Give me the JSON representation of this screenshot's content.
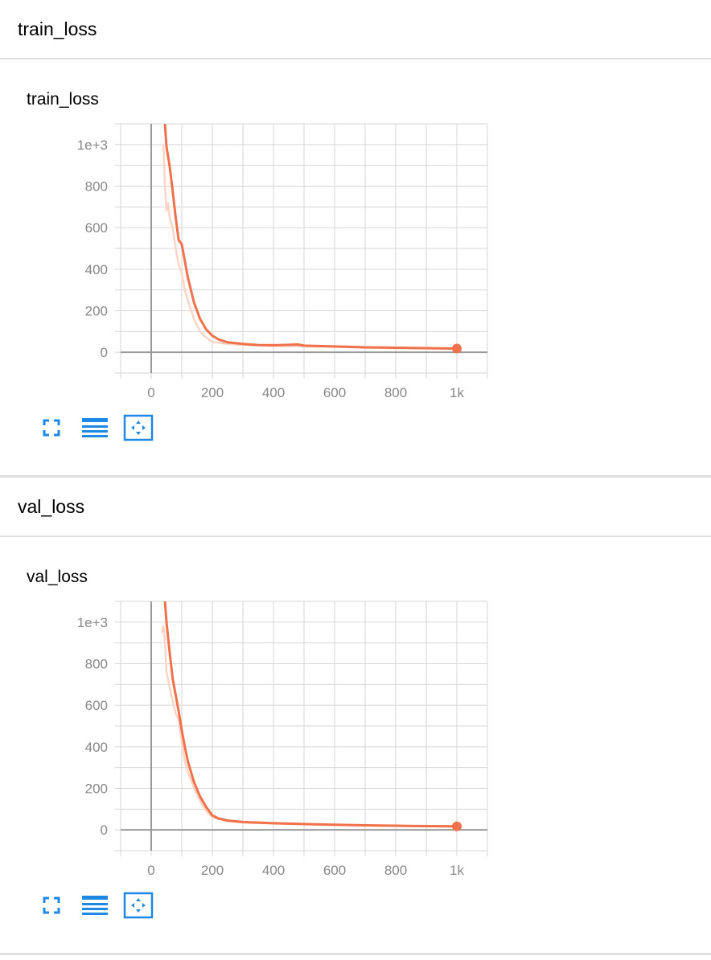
{
  "sections": [
    {
      "header": "train_loss",
      "card_title": "train_loss"
    },
    {
      "header": "val_loss",
      "card_title": "val_loss"
    }
  ],
  "toolbar": {
    "icons": [
      "fullscreen-icon",
      "data-table-icon",
      "fit-domain-icon"
    ]
  },
  "colors": {
    "smoothed": "#f0714a",
    "raw": "#fcd5c7",
    "grid": "#d6d6d6",
    "axis": "#999999"
  },
  "chart_data": [
    {
      "type": "line",
      "title": "train_loss",
      "xlabel": "",
      "ylabel": "",
      "xlim": [
        -100,
        1100
      ],
      "ylim": [
        -100,
        1100
      ],
      "x_ticks": [
        0,
        200,
        400,
        600,
        800,
        1000
      ],
      "x_tick_labels": [
        "0",
        "200",
        "400",
        "600",
        "800",
        "1k"
      ],
      "y_ticks": [
        0,
        200,
        400,
        600,
        800,
        1000
      ],
      "y_tick_labels": [
        "0",
        "200",
        "400",
        "600",
        "800",
        "1e+3"
      ],
      "grid": true,
      "series": [
        {
          "role": "smoothed",
          "x": [
            45,
            50,
            60,
            70,
            80,
            90,
            100,
            110,
            120,
            140,
            160,
            180,
            200,
            220,
            250,
            300,
            350,
            400,
            450,
            480,
            500,
            550,
            600,
            650,
            700,
            750,
            800,
            850,
            900,
            950,
            1000
          ],
          "y": [
            1100,
            990,
            900,
            780,
            650,
            540,
            520,
            440,
            360,
            240,
            160,
            110,
            80,
            62,
            48,
            40,
            35,
            34,
            36,
            38,
            32,
            30,
            28,
            26,
            24,
            23,
            22,
            21,
            20,
            19,
            18
          ]
        },
        {
          "role": "raw",
          "x": [
            40,
            45,
            50,
            55,
            60,
            70,
            80,
            90,
            100,
            110,
            120,
            140,
            160,
            180,
            200,
            250,
            300,
            400,
            500,
            600,
            700,
            800,
            900,
            1000
          ],
          "y": [
            1000,
            800,
            680,
            720,
            650,
            600,
            500,
            420,
            380,
            300,
            250,
            160,
            100,
            70,
            50,
            40,
            35,
            30,
            28,
            26,
            22,
            20,
            18,
            16
          ]
        }
      ]
    },
    {
      "type": "line",
      "title": "val_loss",
      "xlabel": "",
      "ylabel": "",
      "xlim": [
        -100,
        1100
      ],
      "ylim": [
        -100,
        1100
      ],
      "x_ticks": [
        0,
        200,
        400,
        600,
        800,
        1000
      ],
      "x_tick_labels": [
        "0",
        "200",
        "400",
        "600",
        "800",
        "1k"
      ],
      "y_ticks": [
        0,
        200,
        400,
        600,
        800,
        1000
      ],
      "y_tick_labels": [
        "0",
        "200",
        "400",
        "600",
        "800",
        "1e+3"
      ],
      "grid": true,
      "series": [
        {
          "role": "smoothed",
          "x": [
            45,
            50,
            60,
            70,
            80,
            90,
            100,
            110,
            120,
            140,
            160,
            180,
            200,
            220,
            250,
            300,
            350,
            400,
            500,
            600,
            700,
            800,
            900,
            1000
          ],
          "y": [
            1100,
            1000,
            860,
            730,
            650,
            570,
            480,
            400,
            330,
            230,
            160,
            110,
            70,
            55,
            45,
            38,
            35,
            32,
            28,
            25,
            22,
            20,
            18,
            17
          ]
        },
        {
          "role": "raw",
          "x": [
            35,
            40,
            45,
            50,
            60,
            70,
            80,
            90,
            100,
            110,
            120,
            140,
            160,
            180,
            200,
            250,
            300,
            400,
            500,
            600,
            700,
            800,
            900,
            1000
          ],
          "y": [
            950,
            980,
            900,
            760,
            690,
            620,
            560,
            530,
            420,
            330,
            280,
            200,
            140,
            90,
            60,
            42,
            35,
            30,
            27,
            24,
            21,
            19,
            17,
            16
          ]
        }
      ]
    }
  ]
}
